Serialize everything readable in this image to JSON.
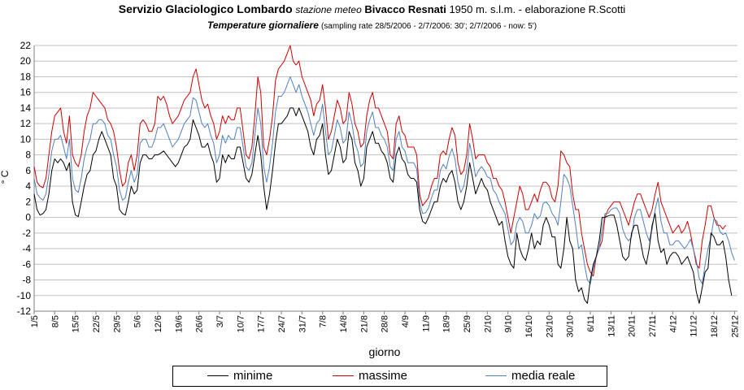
{
  "header": {
    "title_main": "Servizio Glaciologico Lombardo",
    "title_station_prefix": "stazione meteo",
    "title_station": "Bivacco Resnati",
    "title_rest": "1950 m. s.l.m. - elaborazione R.Scotti",
    "subtitle_main": "Temperature giornaliere",
    "subtitle_note": "(sampling rate 28/5/2006 - 2/7/2006: 30'; 2/7/2006 - now: 5')"
  },
  "colors": {
    "minime": "#000000",
    "massime": "#cc0000",
    "media": "#4f81bd",
    "grid": "#c0c0c0"
  },
  "chart_data": {
    "type": "line",
    "title": "Temperature giornaliere",
    "xlabel": "giorno",
    "ylabel": "° C",
    "ylim": [
      -12,
      22
    ],
    "yticks": [
      22,
      20,
      18,
      16,
      14,
      12,
      10,
      8,
      6,
      4,
      2,
      0,
      -2,
      -4,
      -6,
      -8,
      -10,
      -12
    ],
    "ytick_labels": [
      "22",
      "20",
      "18",
      "16",
      "14",
      "12",
      "10",
      "8",
      "6",
      "4",
      "2",
      "0",
      "-2",
      "-4",
      "-6",
      "-8",
      "-10",
      "-12"
    ],
    "x_start_date": "2006-05-01",
    "x_day_count": 240,
    "x_tick_labels": [
      "1/5",
      "8/5",
      "15/5",
      "22/5",
      "29/5",
      "5/6",
      "12/6",
      "19/6",
      "26/6",
      "3/7",
      "10/7",
      "17/7",
      "24/7",
      "31/7",
      "7/8",
      "14/8",
      "21/8",
      "28/8",
      "4/9",
      "11/9",
      "18/9",
      "25/9",
      "2/10",
      "9/10",
      "16/10",
      "23/10",
      "30/10",
      "6/11",
      "13/11",
      "20/11",
      "27/11",
      "4/12",
      "11/12",
      "18/12",
      "25/12"
    ],
    "grid": true,
    "legend_position": "bottom",
    "series": [
      {
        "name": "minime",
        "key": "min",
        "values": [
          3,
          1,
          0.3,
          0.5,
          1,
          3,
          6,
          7.5,
          7,
          7.5,
          7,
          6,
          7,
          2,
          0.3,
          0.1,
          2,
          4,
          5.5,
          6,
          8,
          8.5,
          10,
          11,
          10,
          9,
          8,
          5,
          4,
          1,
          0.5,
          0.3,
          2,
          4,
          3,
          3.5,
          7,
          8,
          8,
          7.5,
          7.5,
          8,
          8,
          8.2,
          8.5,
          8,
          7.5,
          7,
          6.5,
          7,
          8,
          9,
          9.3,
          10,
          12.5,
          11.5,
          10.5,
          9,
          9,
          9.5,
          8,
          7,
          4.5,
          5,
          8,
          7,
          8,
          7.5,
          7.5,
          9,
          9,
          7,
          5,
          4.5,
          5.5,
          8,
          10.5,
          8,
          4,
          1,
          3,
          6,
          9.5,
          12,
          12,
          12.5,
          13,
          14,
          14,
          13,
          14,
          13,
          12,
          11,
          9,
          8,
          10,
          10.5,
          12,
          8,
          5.5,
          6,
          8,
          10,
          9,
          7,
          7.5,
          11,
          10,
          7,
          6,
          4,
          5,
          9,
          10,
          11,
          9.5,
          9.5,
          8.5,
          8,
          7,
          5,
          4.5,
          8,
          9,
          7.5,
          7,
          5.5,
          5,
          5,
          4.5,
          1,
          -0.5,
          -0.8,
          0,
          1,
          2,
          2,
          4,
          5,
          4.5,
          5.5,
          6,
          4.5,
          2,
          1,
          2,
          4,
          7,
          5,
          3,
          4,
          5,
          4,
          3.5,
          2,
          1,
          0,
          -1,
          -0.5,
          -3,
          -5,
          -6,
          -6.5,
          -2,
          -4,
          -5,
          -5.5,
          -4,
          -2,
          -4,
          -3,
          -3.5,
          -1,
          0,
          -1,
          -2.5,
          -2.5,
          -6,
          -6.5,
          -4,
          0,
          -3,
          -4,
          -8,
          -9.5,
          -9,
          -10.5,
          -11,
          -8,
          -6,
          -5,
          -3,
          0,
          0,
          0.2,
          0.3,
          0.3,
          -1,
          -3,
          -5,
          -5.5,
          -5,
          -2,
          -1,
          -1,
          -3,
          -5,
          -6,
          -4,
          -1,
          0.5,
          -3,
          -4.5,
          -4,
          -6,
          -5,
          -4.5,
          -4.5,
          -5,
          -6,
          -5.5,
          -5,
          -6,
          -7,
          -9.5,
          -11,
          -9,
          -7,
          -6.5,
          -2,
          -2.5,
          -3.5,
          -3.5,
          -3,
          -5,
          -8,
          -10
        ]
      },
      {
        "name": "massime",
        "key": "max",
        "values": [
          6.5,
          4.5,
          4,
          3.8,
          5,
          8,
          11,
          13,
          13.5,
          14,
          11,
          9.5,
          13,
          8,
          7,
          6.5,
          8,
          11,
          13,
          14,
          16,
          15.5,
          15,
          14.5,
          14,
          12.5,
          12,
          11,
          9,
          6,
          4,
          4.5,
          7,
          8,
          6,
          8,
          12,
          12.5,
          12,
          11,
          11,
          12,
          15.5,
          15,
          15.5,
          14.5,
          13,
          12,
          12.5,
          13,
          14,
          15,
          15.5,
          16,
          18,
          19,
          17,
          15,
          14,
          14.5,
          13,
          12,
          10,
          11,
          13,
          12,
          13,
          12.5,
          12.5,
          14,
          14,
          11,
          8,
          7.5,
          9,
          13,
          18,
          16,
          9,
          8,
          10,
          13,
          17.5,
          19,
          19.5,
          20,
          21,
          22,
          20,
          19.5,
          20,
          18,
          17,
          16,
          15,
          13,
          14.5,
          15,
          17,
          14,
          10,
          11,
          13,
          15,
          14,
          12,
          12.5,
          16,
          14.5,
          12,
          11,
          9,
          9.5,
          13,
          15,
          16,
          14,
          14,
          13,
          12,
          11,
          8,
          7.5,
          12,
          13,
          11,
          10.5,
          9,
          9,
          9,
          8,
          3,
          1.5,
          2,
          2.5,
          4,
          5,
          5,
          8,
          8.5,
          8,
          10,
          11.5,
          10.5,
          7,
          5.5,
          6,
          8,
          12,
          10,
          7.5,
          8,
          8,
          8,
          7,
          6.5,
          5,
          5,
          4,
          3.5,
          2,
          0,
          -2,
          0,
          2,
          4,
          3,
          1,
          1,
          2,
          3,
          2,
          3.5,
          4.5,
          4.5,
          4,
          2.5,
          2,
          4,
          8.5,
          8,
          7,
          6.5,
          3,
          1,
          1,
          -2,
          -4,
          -6,
          -7,
          -7.5,
          -5,
          -4,
          -3,
          0,
          1,
          1.5,
          2,
          2,
          2,
          1,
          0,
          -1,
          0.5,
          2,
          3,
          3,
          2,
          1,
          0,
          1,
          3,
          4.5,
          2,
          1,
          0,
          -1,
          -2,
          -1.5,
          -1,
          -2,
          -1.5,
          -0.5,
          -2,
          -4,
          -6,
          -6.5,
          -3,
          -1,
          1.5,
          1.5,
          0,
          -1,
          -1,
          -1.5,
          -1
        ]
      },
      {
        "name": "media reale",
        "key": "avg",
        "values": [
          5,
          3,
          2.5,
          2.2,
          3,
          5.5,
          8.5,
          10,
          10,
          10.5,
          9,
          7.5,
          10,
          5,
          3.5,
          3.2,
          5,
          7.5,
          9,
          10,
          12,
          12,
          12.5,
          12.5,
          12,
          10.5,
          10,
          8,
          6.5,
          3.5,
          2.2,
          2.5,
          4.5,
          6,
          4.5,
          5.5,
          9.5,
          10,
          10,
          9,
          9,
          10,
          11.5,
          11.5,
          12,
          11,
          10,
          9,
          9.5,
          10,
          11,
          12,
          12.5,
          13,
          15.3,
          15,
          13.5,
          12,
          11.5,
          12,
          10.5,
          9.5,
          7,
          8,
          10.5,
          9.5,
          10.5,
          10,
          10,
          11.5,
          11.5,
          9,
          6.5,
          6,
          7,
          10.5,
          14,
          12,
          6.5,
          4.5,
          6.5,
          9.5,
          13.5,
          15.5,
          15.5,
          16,
          17,
          18,
          17,
          16,
          17,
          15.5,
          14.5,
          13.5,
          12,
          10.5,
          12,
          12.5,
          14.5,
          11,
          8,
          8.5,
          10.5,
          12.5,
          11.5,
          9.5,
          10,
          13.5,
          12,
          9.5,
          8.5,
          6.5,
          7,
          11,
          12.5,
          13.5,
          11.5,
          11.5,
          10.5,
          10,
          9,
          6.5,
          6,
          10,
          11,
          9,
          8.5,
          7,
          7,
          7,
          6.2,
          2,
          0.5,
          0.6,
          1.2,
          2.5,
          3.5,
          3.5,
          6,
          6.8,
          6.2,
          7.8,
          8.8,
          7.5,
          4.5,
          3.2,
          4,
          6,
          9.5,
          7.5,
          5.2,
          6,
          6.5,
          6,
          5.2,
          5,
          3.5,
          3,
          2,
          1.2,
          0.5,
          -1.5,
          -3.5,
          -3,
          -0.8,
          0,
          -0.5,
          -2,
          -2,
          -1,
          0.5,
          -0.2,
          0.2,
          1.8,
          2,
          1.5,
          0.5,
          0,
          -1,
          2,
          5.5,
          5,
          4,
          1.5,
          -1,
          -4,
          -3.5,
          -6,
          -8,
          -8.5,
          -6.5,
          -5,
          -4,
          -1.5,
          0.5,
          0.5,
          1,
          1.2,
          1.2,
          0.5,
          -1.5,
          -2.5,
          -3,
          -2.5,
          0,
          1,
          1,
          -0.5,
          -2,
          -3,
          -1.5,
          1,
          2.5,
          -0.5,
          -2,
          -2,
          -3.5,
          -3.5,
          -3,
          -3,
          -3.5,
          -4,
          -3.5,
          -2.8,
          -4,
          -5.5,
          -7.8,
          -8.5,
          -6,
          -4,
          -2.5,
          -0.2,
          -0.5,
          -1.8,
          -2.2,
          -2,
          -3,
          -4.5,
          -5.5
        ]
      }
    ]
  },
  "legend": {
    "items": [
      {
        "key": "min",
        "label": "minime"
      },
      {
        "key": "max",
        "label": "massime"
      },
      {
        "key": "avg",
        "label": "media reale"
      }
    ]
  }
}
